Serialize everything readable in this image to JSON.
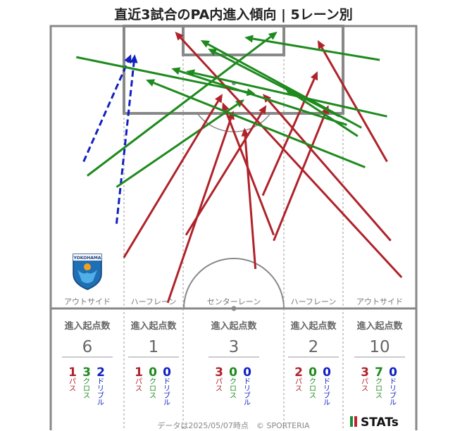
{
  "title": "直近3試合のPA内進入傾向 | 5レーン別",
  "footer": "データは2025/05/07時点　© SPORTERIA",
  "brand": "STATs",
  "logo_text": "YOKOHAMA",
  "colors": {
    "pass": "#b0222a",
    "cross": "#1e8a1e",
    "dribble": "#1020c0",
    "line": "#888888"
  },
  "chart_data": {
    "type": "pitch-flow",
    "lanes": [
      {
        "key": "out-left",
        "label": "アウトサイド",
        "header": "進入起点数",
        "total": "6",
        "pass": "1",
        "cross": "3",
        "dribble": "2"
      },
      {
        "key": "half-left",
        "label": "ハーフレーン",
        "header": "進入起点数",
        "total": "1",
        "pass": "1",
        "cross": "0",
        "dribble": "0"
      },
      {
        "key": "center",
        "label": "センターレーン",
        "header": "進入起点数",
        "total": "3",
        "pass": "3",
        "cross": "0",
        "dribble": "0"
      },
      {
        "key": "half-right",
        "label": "ハーフレーン",
        "header": "進入起点数",
        "total": "2",
        "pass": "2",
        "cross": "0",
        "dribble": "0"
      },
      {
        "key": "out-right",
        "label": "アウトサイド",
        "header": "進入起点数",
        "total": "10",
        "pass": "3",
        "cross": "7",
        "dribble": "0"
      }
    ],
    "type_labels": {
      "pass": "パス",
      "cross": "クロス",
      "dribble": "ドリブル"
    },
    "entries": [
      {
        "type": "dribble",
        "from": [
          0.18,
          0.3
        ],
        "to": [
          0.23,
          0.9
        ]
      },
      {
        "type": "dribble",
        "from": [
          0.09,
          0.52
        ],
        "to": [
          0.22,
          0.9
        ]
      },
      {
        "type": "cross",
        "from": [
          0.1,
          0.47
        ],
        "to": [
          0.62,
          0.98
        ]
      },
      {
        "type": "cross",
        "from": [
          0.07,
          0.89
        ],
        "to": [
          0.56,
          0.76
        ]
      },
      {
        "type": "cross",
        "from": [
          0.18,
          0.43
        ],
        "to": [
          0.53,
          0.74
        ]
      },
      {
        "type": "pass",
        "from": [
          0.2,
          0.18
        ],
        "to": [
          0.47,
          0.76
        ]
      },
      {
        "type": "pass",
        "from": [
          0.32,
          0.02
        ],
        "to": [
          0.5,
          0.7
        ]
      },
      {
        "type": "pass",
        "from": [
          0.37,
          0.26
        ],
        "to": [
          0.59,
          0.72
        ]
      },
      {
        "type": "pass",
        "from": [
          0.56,
          0.14
        ],
        "to": [
          0.53,
          0.64
        ]
      },
      {
        "type": "pass",
        "from": [
          0.58,
          0.4
        ],
        "to": [
          0.73,
          0.84
        ]
      },
      {
        "type": "pass",
        "from": [
          0.61,
          0.24
        ],
        "to": [
          0.76,
          0.72
        ]
      },
      {
        "type": "pass",
        "from": [
          0.61,
          0.26
        ],
        "to": [
          0.47,
          0.73
        ]
      },
      {
        "type": "pass",
        "from": [
          0.93,
          0.24
        ],
        "to": [
          0.58,
          0.76
        ]
      },
      {
        "type": "pass",
        "from": [
          0.92,
          0.52
        ],
        "to": [
          0.73,
          0.95
        ]
      },
      {
        "type": "pass",
        "from": [
          0.96,
          0.11
        ],
        "to": [
          0.34,
          0.98
        ]
      },
      {
        "type": "cross",
        "from": [
          0.9,
          0.88
        ],
        "to": [
          0.53,
          0.96
        ]
      },
      {
        "type": "cross",
        "from": [
          0.92,
          0.68
        ],
        "to": [
          0.37,
          0.84
        ]
      },
      {
        "type": "cross",
        "from": [
          0.79,
          0.68
        ],
        "to": [
          0.43,
          0.92
        ]
      },
      {
        "type": "cross",
        "from": [
          0.85,
          0.64
        ],
        "to": [
          0.41,
          0.95
        ]
      },
      {
        "type": "cross",
        "from": [
          0.86,
          0.5
        ],
        "to": [
          0.26,
          0.81
        ]
      },
      {
        "type": "cross",
        "from": [
          0.81,
          0.65
        ],
        "to": [
          0.33,
          0.85
        ]
      },
      {
        "type": "cross",
        "from": [
          0.84,
          0.61
        ],
        "to": [
          0.64,
          0.78
        ]
      }
    ]
  }
}
